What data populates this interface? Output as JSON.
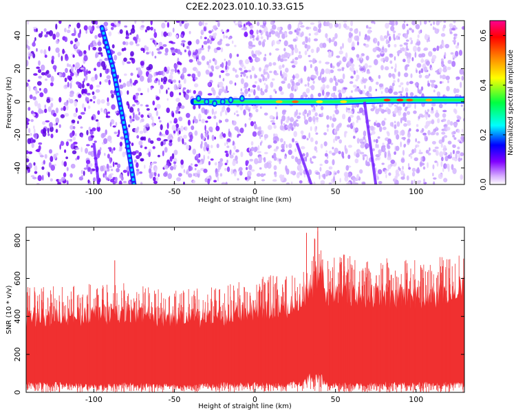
{
  "title": "C2E2.2023.010.10.33.G15",
  "chart_data": [
    {
      "type": "heatmap",
      "xlabel": "Height of straight line (km)",
      "ylabel": "Frequency (Hz)",
      "xlim": [
        -142,
        130
      ],
      "ylim": [
        -50,
        49
      ],
      "xticks": [
        -100,
        -50,
        0,
        50,
        100
      ],
      "yticks": [
        -40,
        -20,
        0,
        20,
        40
      ],
      "xtick_labels": [
        "-100",
        "-50",
        "0",
        "50",
        "100"
      ],
      "ytick_labels": [
        "-40",
        "-20",
        "0",
        "20",
        "40"
      ],
      "colorbar": {
        "label": "Normalized spectral amplitude",
        "range": [
          0,
          0.66
        ],
        "ticks": [
          0,
          0.2,
          0.4,
          0.6
        ],
        "tick_labels": [
          "0.0",
          "0.2",
          "0.4",
          "0.6"
        ],
        "colors": [
          "#ffffff",
          "#8000ff",
          "#0000ff",
          "#00ffff",
          "#00ff00",
          "#ffff00",
          "#ff8000",
          "#ff0000",
          "#ff00a0"
        ]
      },
      "features": [
        {
          "name": "horizontal trace",
          "points": [
            [
              -38,
              0
            ],
            [
              10,
              0
            ],
            [
              50,
              0
            ],
            [
              80,
              1
            ],
            [
              100,
              1
            ],
            [
              130,
              1
            ]
          ]
        },
        {
          "name": "steep trace",
          "points": [
            [
              -95,
              45
            ],
            [
              -88,
              20
            ],
            [
              -84,
              0
            ],
            [
              -80,
              -20
            ],
            [
              -75,
              -50
            ]
          ]
        },
        {
          "name": "faint trace",
          "points": [
            [
              -100,
              -25
            ],
            [
              -97,
              -50
            ]
          ]
        },
        {
          "name": "faint trace",
          "points": [
            [
              26,
              -25
            ],
            [
              35,
              -50
            ]
          ]
        },
        {
          "name": "faint trace",
          "points": [
            [
              68,
              0
            ],
            [
              75,
              -50
            ]
          ]
        }
      ]
    },
    {
      "type": "line",
      "xlabel": "Height of straight line (km)",
      "ylabel": "SNR (10 * v/v)",
      "xlim": [
        -142,
        130
      ],
      "ylim": [
        0,
        870
      ],
      "xticks": [
        -100,
        -50,
        0,
        50,
        100
      ],
      "yticks": [
        0,
        200,
        400,
        600,
        800
      ],
      "xtick_labels": [
        "-100",
        "-50",
        "0",
        "50",
        "100"
      ],
      "ytick_labels": [
        "0",
        "200",
        "400",
        "600",
        "800"
      ],
      "series": [
        {
          "color": "#f03030",
          "envelope": {
            "x": [
              -142,
              -120,
              -100,
              -80,
              -60,
              -40,
              -20,
              0,
              20,
              30,
              35,
              40,
              45,
              60,
              80,
              100,
              120,
              130
            ],
            "min": [
              40,
              40,
              30,
              40,
              35,
              30,
              40,
              40,
              40,
              50,
              80,
              80,
              40,
              40,
              40,
              40,
              40,
              40
            ],
            "max": [
              430,
              430,
              440,
              450,
              430,
              420,
              430,
              470,
              480,
              560,
              600,
              700,
              560,
              560,
              550,
              540,
              560,
              600
            ]
          },
          "peaks": [
            [
              -87,
              695
            ],
            [
              32,
              840
            ],
            [
              37,
              810
            ],
            [
              39,
              870
            ],
            [
              42,
              700
            ],
            [
              -135,
              480
            ],
            [
              88,
              610
            ],
            [
              127,
              610
            ]
          ]
        }
      ]
    }
  ]
}
